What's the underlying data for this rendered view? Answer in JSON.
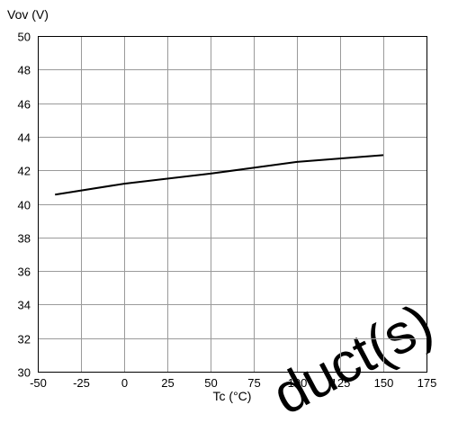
{
  "chart_data": {
    "type": "line",
    "title": "",
    "xlabel": "Tc (°C)",
    "ylabel": "Vov (V)",
    "xlim": [
      -50,
      175
    ],
    "ylim": [
      30,
      50
    ],
    "x_ticks": [
      -50,
      -25,
      0,
      25,
      50,
      75,
      100,
      125,
      150,
      175
    ],
    "y_ticks": [
      30,
      32,
      34,
      36,
      38,
      40,
      42,
      44,
      46,
      48,
      50
    ],
    "x_tick_labels": [
      "-50",
      "-25",
      "0",
      "25",
      "50",
      "75",
      "100",
      "125",
      "150",
      "175"
    ],
    "y_tick_labels": [
      "30",
      "32",
      "34",
      "36",
      "38",
      "40",
      "42",
      "44",
      "46",
      "48",
      "50"
    ],
    "grid": true,
    "legend": "none",
    "series": [
      {
        "color": "#000000",
        "x": [
          -40,
          0,
          25,
          50,
          75,
          100,
          125,
          150
        ],
        "y": [
          40.55,
          41.2,
          41.5,
          41.8,
          42.15,
          42.5,
          42.7,
          42.9
        ]
      }
    ]
  },
  "watermark": {
    "text": "duct(s)",
    "color": "#d9d9d9"
  }
}
